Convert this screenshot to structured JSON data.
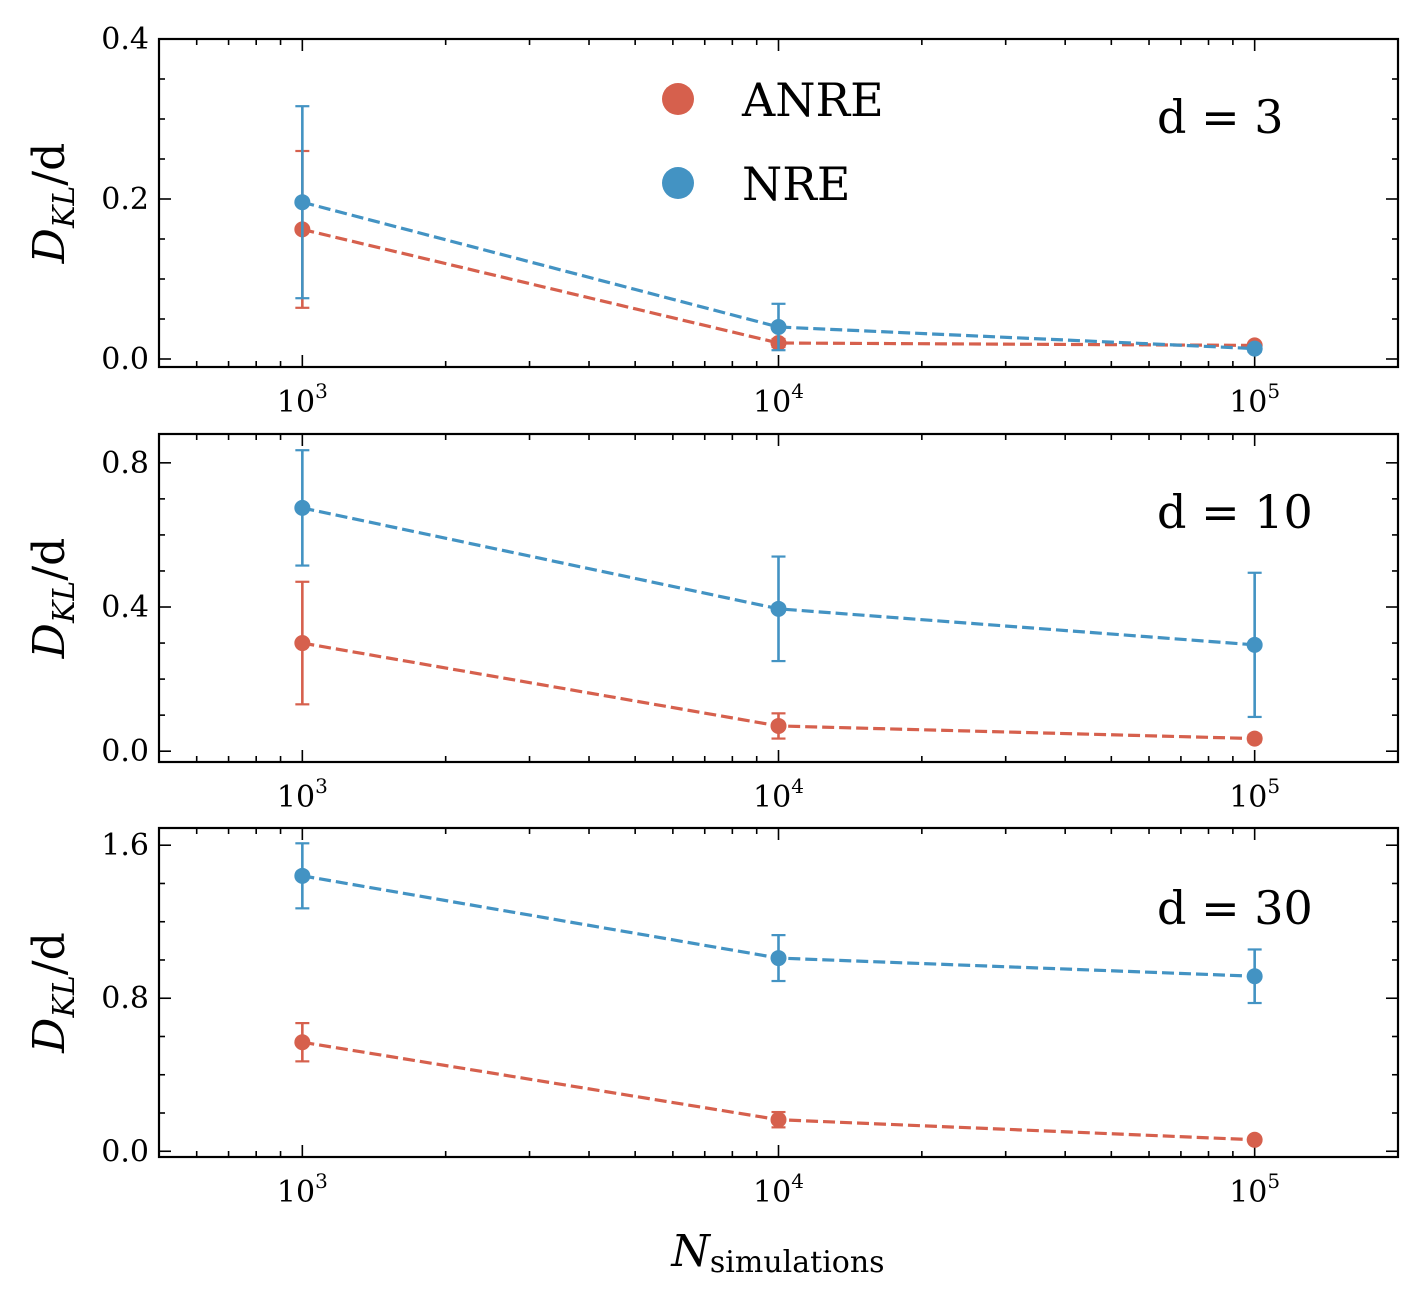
{
  "chart_data": [
    {
      "type": "line",
      "annotation": "d = 3",
      "ylabel": "D_KL/d",
      "x_scale": "log",
      "xlim": [
        500,
        200000
      ],
      "ylim": [
        -0.01,
        0.4
      ],
      "yticks": [
        0.0,
        0.2,
        0.4
      ],
      "ytick_labels": [
        "0.0",
        "0.2",
        "0.4"
      ],
      "xticks": [
        1000,
        10000,
        100000
      ],
      "series": [
        {
          "name": "ANRE",
          "color": "#d6604d",
          "x": [
            1000,
            10000,
            100000
          ],
          "y": [
            0.162,
            0.02,
            0.017
          ],
          "yerr": [
            0.098,
            0.005,
            0.003
          ]
        },
        {
          "name": "NRE",
          "color": "#4393c3",
          "x": [
            1000,
            10000,
            100000
          ],
          "y": [
            0.196,
            0.04,
            0.013
          ],
          "yerr": [
            0.12,
            0.029,
            0.004
          ]
        }
      ]
    },
    {
      "type": "line",
      "annotation": "d = 10",
      "ylabel": "D_KL/d",
      "x_scale": "log",
      "xlim": [
        500,
        200000
      ],
      "ylim": [
        -0.03,
        0.88
      ],
      "yticks": [
        0.0,
        0.4,
        0.8
      ],
      "ytick_labels": [
        "0.0",
        "0.4",
        "0.8"
      ],
      "xticks": [
        1000,
        10000,
        100000
      ],
      "series": [
        {
          "name": "ANRE",
          "color": "#d6604d",
          "x": [
            1000,
            10000,
            100000
          ],
          "y": [
            0.3,
            0.07,
            0.035
          ],
          "yerr": [
            0.17,
            0.035,
            0.01
          ]
        },
        {
          "name": "NRE",
          "color": "#4393c3",
          "x": [
            1000,
            10000,
            100000
          ],
          "y": [
            0.675,
            0.395,
            0.295
          ],
          "yerr": [
            0.16,
            0.145,
            0.2
          ]
        }
      ]
    },
    {
      "type": "line",
      "annotation": "d = 30",
      "ylabel": "D_KL/d",
      "xlabel": "N_simulations",
      "x_scale": "log",
      "xlim": [
        500,
        200000
      ],
      "ylim": [
        -0.03,
        1.69
      ],
      "yticks": [
        0.0,
        0.8,
        1.6
      ],
      "ytick_labels": [
        "0.0",
        "0.8",
        "1.6"
      ],
      "xticks": [
        1000,
        10000,
        100000
      ],
      "series": [
        {
          "name": "ANRE",
          "color": "#d6604d",
          "x": [
            1000,
            10000,
            100000
          ],
          "y": [
            0.57,
            0.165,
            0.06
          ],
          "yerr": [
            0.1,
            0.04,
            0.01
          ]
        },
        {
          "name": "NRE",
          "color": "#4393c3",
          "x": [
            1000,
            10000,
            100000
          ],
          "y": [
            1.44,
            1.01,
            0.915
          ],
          "yerr": [
            0.17,
            0.12,
            0.14
          ]
        }
      ]
    }
  ],
  "legend": {
    "placement": "top-center",
    "entries": [
      {
        "label": "ANRE",
        "color": "#d6604d"
      },
      {
        "label": "NRE",
        "color": "#4393c3"
      }
    ]
  },
  "xtick_labels": [
    {
      "base": "10",
      "exp": "3"
    },
    {
      "base": "10",
      "exp": "4"
    },
    {
      "base": "10",
      "exp": "5"
    }
  ],
  "ylabel_text": {
    "main": "D",
    "sub": "KL",
    "rest": "/d"
  },
  "xlabel_text": {
    "main": "N",
    "sub": "simulations"
  }
}
